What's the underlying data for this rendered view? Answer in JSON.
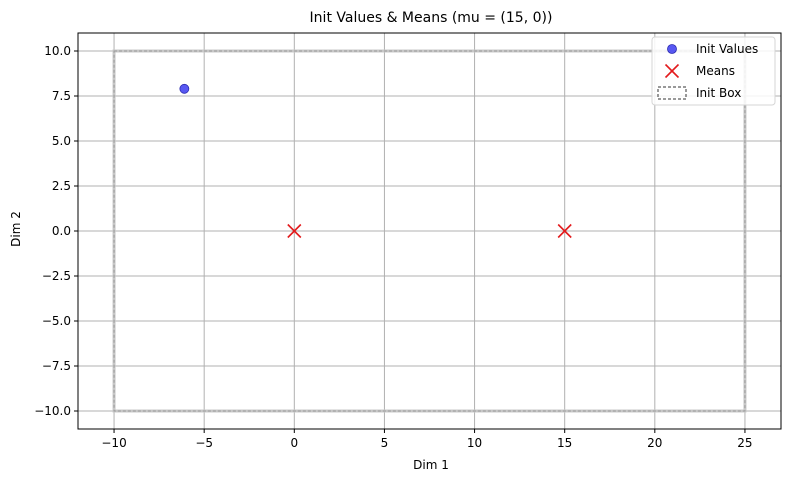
{
  "chart_data": {
    "type": "scatter",
    "title": "Init Values & Means (mu = (15, 0))",
    "xlabel": "Dim 1",
    "ylabel": "Dim 2",
    "xlim": [
      -12,
      27
    ],
    "ylim": [
      -11,
      11
    ],
    "xticks": [
      -10,
      -5,
      0,
      5,
      10,
      15,
      20,
      25
    ],
    "yticks": [
      -10.0,
      -7.5,
      -5.0,
      -2.5,
      0.0,
      2.5,
      5.0,
      7.5,
      10.0
    ],
    "xtick_labels": [
      "−10",
      "−5",
      "0",
      "5",
      "10",
      "15",
      "20",
      "25"
    ],
    "ytick_labels": [
      "−10.0",
      "−7.5",
      "−5.0",
      "−2.5",
      "0.0",
      "2.5",
      "5.0",
      "7.5",
      "10.0"
    ],
    "grid": true,
    "legend_position": "top-right",
    "series": [
      {
        "name": "Init Values",
        "kind": "scatter-dot",
        "color": "#3b3bf0",
        "points": [
          [
            -6.1,
            7.9
          ]
        ]
      },
      {
        "name": "Means",
        "kind": "scatter-x",
        "color": "#e31a1c",
        "points": [
          [
            0,
            0
          ],
          [
            15,
            0
          ]
        ]
      },
      {
        "name": "Init Box",
        "kind": "dashed-rect",
        "color": "#333333",
        "box": {
          "x0": -10,
          "x1": 25,
          "y0": -10,
          "y1": 10
        }
      }
    ]
  }
}
